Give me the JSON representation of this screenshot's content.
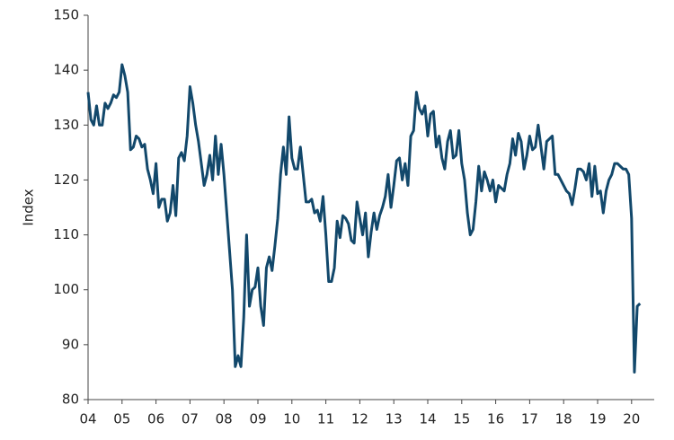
{
  "chart_data": {
    "type": "line",
    "y_label": "Index",
    "color": "#12486b",
    "categories": [
      "04",
      null,
      null,
      null,
      null,
      null,
      null,
      null,
      null,
      null,
      null,
      null,
      "05",
      null,
      null,
      null,
      null,
      null,
      null,
      null,
      null,
      null,
      null,
      null,
      "06",
      null,
      null,
      null,
      null,
      null,
      null,
      null,
      null,
      null,
      null,
      null,
      "07",
      null,
      null,
      null,
      null,
      null,
      null,
      null,
      null,
      null,
      null,
      null,
      "08",
      null,
      null,
      null,
      null,
      null,
      null,
      null,
      null,
      null,
      null,
      null,
      "09",
      null,
      null,
      null,
      null,
      null,
      null,
      null,
      null,
      null,
      null,
      null,
      "10",
      null,
      null,
      null,
      null,
      null,
      null,
      null,
      null,
      null,
      null,
      null,
      "11",
      null,
      null,
      null,
      null,
      null,
      null,
      null,
      null,
      null,
      null,
      null,
      "12",
      null,
      null,
      null,
      null,
      null,
      null,
      null,
      null,
      null,
      null,
      null,
      "13",
      null,
      null,
      null,
      null,
      null,
      null,
      null,
      null,
      null,
      null,
      null,
      "14",
      null,
      null,
      null,
      null,
      null,
      null,
      null,
      null,
      null,
      null,
      null,
      "15",
      null,
      null,
      null,
      null,
      null,
      null,
      null,
      null,
      null,
      null,
      null,
      "16",
      null,
      null,
      null,
      null,
      null,
      null,
      null,
      null,
      null,
      null,
      null,
      "17",
      null,
      null,
      null,
      null,
      null,
      null,
      null,
      null,
      null,
      null,
      null,
      "18",
      null,
      null,
      null,
      null,
      null,
      null,
      null,
      null,
      null,
      null,
      null,
      "19",
      null,
      null,
      null,
      null,
      null,
      null,
      null,
      null,
      null,
      null,
      null,
      "20",
      null,
      null,
      null
    ],
    "values": [
      136,
      131,
      130,
      133.5,
      130,
      130,
      134,
      133,
      134,
      135.5,
      135,
      136,
      141,
      139,
      136,
      125.5,
      126,
      128,
      127.5,
      126,
      126.5,
      122,
      120,
      117.5,
      123,
      115,
      116.5,
      116.5,
      112.5,
      114,
      119,
      113.5,
      124,
      125,
      123.5,
      128,
      137,
      134,
      130,
      127,
      123,
      119,
      121,
      124.5,
      120,
      128,
      121,
      126.5,
      121,
      114,
      107,
      100,
      86,
      88,
      86,
      95,
      110,
      97,
      100,
      100.5,
      104,
      97,
      93.5,
      104,
      106,
      103.5,
      108,
      113,
      121,
      126,
      121,
      131.5,
      124,
      122,
      122,
      126,
      121,
      116,
      116,
      116.5,
      114,
      114.5,
      112.5,
      117,
      110,
      101.5,
      101.5,
      104,
      112.5,
      109.5,
      113.5,
      113,
      112,
      109,
      108.5,
      116,
      113,
      110,
      114,
      106,
      110.5,
      114,
      111,
      113.5,
      115,
      117,
      121,
      115,
      119,
      123.5,
      124,
      120,
      123,
      119,
      128,
      129,
      136,
      133,
      132,
      133.5,
      128,
      132,
      132.5,
      126,
      128,
      124,
      122,
      127,
      129,
      124,
      124.5,
      129,
      123,
      120,
      114,
      110,
      111,
      116,
      122.5,
      118,
      121.5,
      120,
      118,
      120,
      116,
      119,
      118.5,
      118,
      121,
      123,
      127.5,
      124.5,
      128.5,
      127,
      122,
      124.5,
      128,
      125.5,
      126,
      130,
      126,
      122,
      127,
      127.5,
      128,
      121,
      121,
      120,
      119,
      118,
      117.5,
      115.5,
      118.5,
      122,
      122,
      121.5,
      120,
      123,
      117,
      122.5,
      117.5,
      118,
      114,
      118,
      120,
      121,
      123,
      123,
      122.5,
      122,
      122,
      121,
      113,
      85,
      97,
      97.5
    ],
    "ylim": [
      80,
      150
    ],
    "yticks": [
      80,
      90,
      100,
      110,
      120,
      130,
      140,
      150
    ]
  }
}
